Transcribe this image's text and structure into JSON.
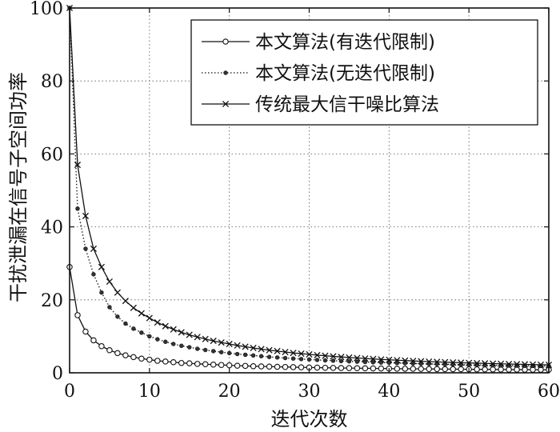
{
  "chart_data": {
    "type": "line",
    "xlabel": "迭代次数",
    "ylabel": "干扰泄漏在信号子空间功率",
    "xlim": [
      0,
      60
    ],
    "ylim": [
      0,
      100
    ],
    "xticks": [
      0,
      10,
      20,
      30,
      40,
      50,
      60
    ],
    "yticks": [
      0,
      20,
      40,
      60,
      80,
      100
    ],
    "grid": "dotted",
    "legend_position": "top-right",
    "x": [
      0,
      1,
      2,
      3,
      4,
      5,
      6,
      7,
      8,
      9,
      10,
      11,
      12,
      13,
      14,
      15,
      16,
      17,
      18,
      19,
      20,
      21,
      22,
      23,
      24,
      25,
      26,
      27,
      28,
      29,
      30,
      31,
      32,
      33,
      34,
      35,
      36,
      37,
      38,
      39,
      40,
      41,
      42,
      43,
      44,
      45,
      46,
      47,
      48,
      49,
      50,
      51,
      52,
      53,
      54,
      55,
      56,
      57,
      58,
      59,
      60
    ],
    "series": [
      {
        "name": "本文算法(有迭代限制)",
        "marker": "circle",
        "linestyle": "solid",
        "values": [
          29,
          15.8,
          11.3,
          8.9,
          7.3,
          6.2,
          5.4,
          4.8,
          4.3,
          3.9,
          3.6,
          3.3,
          3.1,
          2.9,
          2.7,
          2.6,
          2.45,
          2.35,
          2.25,
          2.15,
          2.05,
          1.95,
          1.9,
          1.8,
          1.75,
          1.7,
          1.65,
          1.6,
          1.55,
          1.5,
          1.45,
          1.42,
          1.38,
          1.35,
          1.32,
          1.29,
          1.26,
          1.23,
          1.2,
          1.18,
          1.15,
          1.13,
          1.11,
          1.09,
          1.07,
          1.05,
          1.03,
          1.01,
          1.0,
          0.98,
          0.96,
          0.95,
          0.93,
          0.92,
          0.9,
          0.89,
          0.88,
          0.86,
          0.85,
          0.84,
          0.83
        ]
      },
      {
        "name": "本文算法(无迭代限制)",
        "marker": "dot",
        "linestyle": "dotted",
        "values": [
          100,
          45,
          34,
          27,
          22,
          18,
          15.4,
          13.5,
          12.1,
          11,
          10,
          9.2,
          8.5,
          7.9,
          7.4,
          7.0,
          6.6,
          6.25,
          5.95,
          5.65,
          5.4,
          5.15,
          4.95,
          4.75,
          4.55,
          4.35,
          4.2,
          4.05,
          3.9,
          3.77,
          3.65,
          3.53,
          3.42,
          3.32,
          3.22,
          3.13,
          3.04,
          2.96,
          2.88,
          2.81,
          2.74,
          2.67,
          2.61,
          2.55,
          2.49,
          2.44,
          2.39,
          2.34,
          2.29,
          2.24,
          2.2,
          2.16,
          2.12,
          2.08,
          2.04,
          2.0,
          1.97,
          1.94,
          1.91,
          1.88,
          1.85
        ]
      },
      {
        "name": "传统最大信干噪比算法",
        "marker": "x",
        "linestyle": "solid",
        "values": [
          100,
          57,
          43,
          34,
          29,
          25,
          22,
          19.7,
          17.8,
          16.3,
          15,
          13.8,
          12.8,
          11.9,
          11.1,
          10.4,
          9.8,
          9.25,
          8.75,
          8.3,
          7.9,
          7.5,
          7.15,
          6.8,
          6.5,
          6.2,
          5.95,
          5.7,
          5.45,
          5.25,
          5.05,
          4.85,
          4.67,
          4.5,
          4.34,
          4.19,
          4.05,
          3.92,
          3.79,
          3.67,
          3.56,
          3.45,
          3.35,
          3.25,
          3.16,
          3.07,
          2.99,
          2.91,
          2.84,
          2.77,
          2.7,
          2.64,
          2.58,
          2.52,
          2.46,
          2.41,
          2.36,
          2.31,
          2.26,
          2.22,
          2.18
        ]
      }
    ]
  }
}
